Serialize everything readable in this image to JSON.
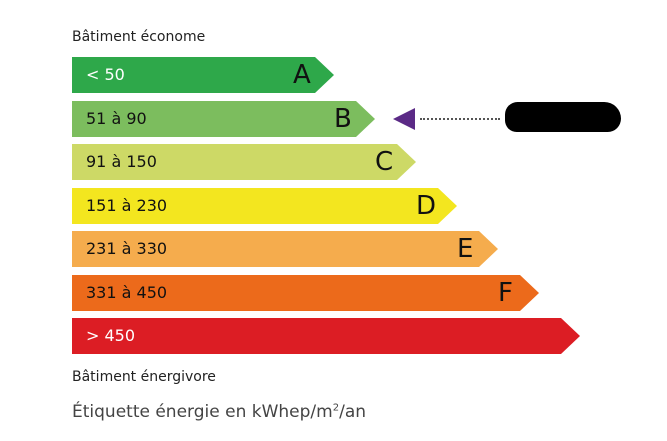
{
  "top_label": "Bâtiment économe",
  "bottom_label": "Bâtiment énergivore",
  "caption_prefix": "Étiquette énergie en kWhep/m",
  "caption_sup": "2",
  "caption_suffix": "/an",
  "marker_color": "#5b2a86",
  "current_class": "B",
  "classes": [
    {
      "letter": "A",
      "range": "< 50",
      "color": "#2ea84a",
      "text_color": "#ffffff"
    },
    {
      "letter": "B",
      "range": "51 à 90",
      "color": "#7cbd5e",
      "text_color": "#111111"
    },
    {
      "letter": "C",
      "range": "91 à 150",
      "color": "#cdd966",
      "text_color": "#111111"
    },
    {
      "letter": "D",
      "range": "151 à 230",
      "color": "#f3e61f",
      "text_color": "#111111"
    },
    {
      "letter": "E",
      "range": "231 à 330",
      "color": "#f5ac4d",
      "text_color": "#111111"
    },
    {
      "letter": "F",
      "range": "331 à 450",
      "color": "#ec6a1b",
      "text_color": "#111111"
    },
    {
      "letter": "",
      "range": "> 450",
      "color": "#dc1d24",
      "text_color": "#ffffff"
    }
  ]
}
